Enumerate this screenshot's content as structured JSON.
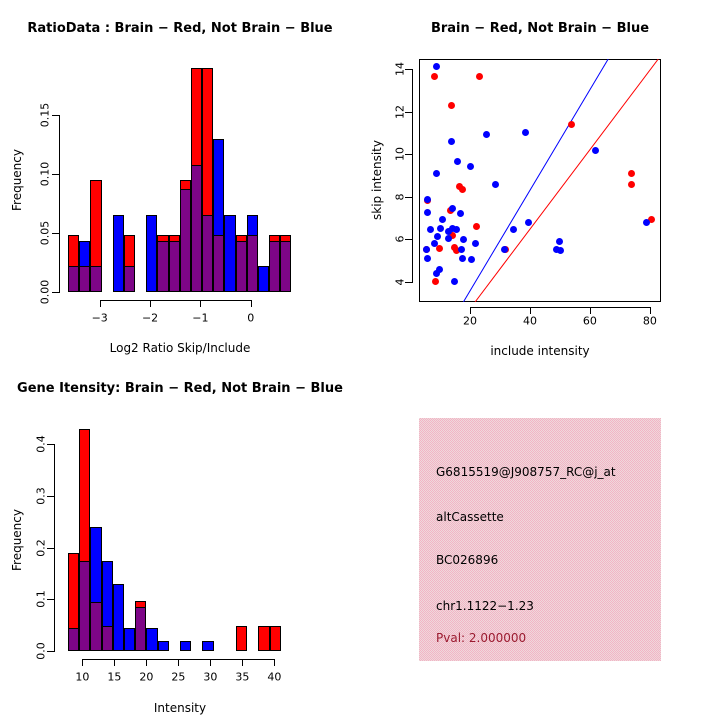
{
  "figure": {
    "background": "#FFFFFF",
    "description": "2x2 R graphics panel: two overlaid histograms, one scatter plot, one gene info box"
  },
  "colors": {
    "red": "#FF0000",
    "blue": "#0000FF",
    "overlap": "#7D0587",
    "axis": "#000000",
    "background": "#FFFFFF"
  },
  "chart_data": [
    {
      "id": "ratio-histogram",
      "type": "bar",
      "title": "RatioData : Brain − Red, Not Brain − Blue",
      "xlabel": "Log2 Ratio Skip/Include",
      "ylabel": "Frequency",
      "xlim": [
        -3.63,
        0.81
      ],
      "ylim": [
        0,
        0.19
      ],
      "bin_start": -3.63,
      "bin_width": 0.222,
      "x_ticks": [
        -3,
        -2,
        -1,
        0
      ],
      "x_tick_labels": [
        "−3",
        "−2",
        "−1",
        "0"
      ],
      "y_ticks": [
        0,
        0.05,
        0.1,
        0.15
      ],
      "y_tick_labels": [
        "0.00",
        "0.05",
        "0.10",
        "0.15"
      ],
      "grid": false,
      "legend": "none",
      "series": [
        {
          "name": "Brain",
          "color": "red",
          "values": [
            0.048,
            0.022,
            0.095,
            0,
            0,
            0.048,
            0,
            0,
            0.048,
            0.048,
            0.095,
            0.19,
            0.19,
            0.048,
            0,
            0.048,
            0.048,
            0,
            0.048,
            0.048
          ]
        },
        {
          "name": "Not Brain",
          "color": "blue",
          "values": [
            0.022,
            0.043,
            0.022,
            0,
            0.065,
            0.022,
            0,
            0.065,
            0.043,
            0.043,
            0.087,
            0.108,
            0.065,
            0.13,
            0.065,
            0.043,
            0.065,
            0.022,
            0.043,
            0.043
          ]
        }
      ]
    },
    {
      "id": "intensity-scatter",
      "type": "scatter",
      "title": "Brain − Red, Not Brain − Blue",
      "xlabel": "include intensity",
      "ylabel": "skip intensity",
      "xlim": [
        3,
        83.7
      ],
      "ylim": [
        3.04,
        14.47
      ],
      "x_ticks": [
        20,
        40,
        60,
        80
      ],
      "x_tick_labels": [
        "20",
        "40",
        "60",
        "80"
      ],
      "y_ticks": [
        4,
        6,
        8,
        10,
        12,
        14
      ],
      "y_tick_labels": [
        "4",
        "6",
        "8",
        "10",
        "12",
        "14"
      ],
      "grid": false,
      "legend": "none",
      "series": [
        {
          "name": "Brain",
          "color": "red",
          "points": [
            [
              8.3,
              13.65
            ],
            [
              23.3,
              13.65
            ],
            [
              14,
              12.3
            ],
            [
              54,
              11.4
            ],
            [
              16.4,
              8.45
            ],
            [
              17.5,
              8.35
            ],
            [
              74,
              9.1
            ],
            [
              74,
              8.55
            ],
            [
              5.8,
              7.8
            ],
            [
              13.5,
              7.35
            ],
            [
              22.3,
              6.6
            ],
            [
              14.2,
              6.15
            ],
            [
              9.8,
              5.55
            ],
            [
              15,
              5.6
            ],
            [
              15.4,
              5.45
            ],
            [
              5.4,
              5.5
            ],
            [
              8.5,
              4.0
            ],
            [
              80.5,
              6.9
            ],
            [
              31.8,
              5.5
            ]
          ]
        },
        {
          "name": "Not Brain",
          "color": "blue",
          "points": [
            [
              9,
              14.1
            ],
            [
              25.5,
              10.9
            ],
            [
              38.5,
              11.0
            ],
            [
              14,
              10.6
            ],
            [
              16,
              9.65
            ],
            [
              20.2,
              9.4
            ],
            [
              9,
              9.1
            ],
            [
              28.5,
              8.55
            ],
            [
              62,
              10.15
            ],
            [
              6,
              7.85
            ],
            [
              6,
              7.25
            ],
            [
              14.2,
              7.45
            ],
            [
              17,
              7.2
            ],
            [
              11,
              6.9
            ],
            [
              7,
              6.45
            ],
            [
              10.3,
              6.5
            ],
            [
              12.8,
              6.35
            ],
            [
              14.3,
              6.5
            ],
            [
              15.6,
              6.45
            ],
            [
              9.2,
              6.1
            ],
            [
              12.8,
              6.05
            ],
            [
              17.8,
              6.0
            ],
            [
              8.2,
              5.8
            ],
            [
              22,
              5.8
            ],
            [
              5.5,
              5.5
            ],
            [
              17.2,
              5.5
            ],
            [
              6,
              5.1
            ],
            [
              17.5,
              5.1
            ],
            [
              20.5,
              5.05
            ],
            [
              9.8,
              4.55
            ],
            [
              8.8,
              4.4
            ],
            [
              15,
              4.0
            ],
            [
              31.5,
              5.5
            ],
            [
              34.5,
              6.45
            ],
            [
              39.5,
              6.8
            ],
            [
              50,
              5.9
            ],
            [
              48.8,
              5.5
            ],
            [
              50.3,
              5.45
            ],
            [
              79,
              6.8
            ]
          ]
        }
      ],
      "lines": [
        {
          "name": "blue-diagonal",
          "color": "blue",
          "x1": 17.8,
          "y1": 3.04,
          "x2": 66.1,
          "y2": 14.47
        },
        {
          "name": "red-diagonal",
          "color": "red",
          "x1": 21.7,
          "y1": 3.04,
          "x2": 82.8,
          "y2": 14.47
        }
      ]
    },
    {
      "id": "gene-intensity-histogram",
      "type": "bar",
      "title": "Gene Itensity: Brain − Red, Not Brain − Blue",
      "xlabel": "Intensity",
      "ylabel": "Frequency",
      "xlim": [
        7.75,
        40.95
      ],
      "ylim": [
        0,
        0.43
      ],
      "bin_start": 7.75,
      "bin_width": 1.75,
      "x_ticks": [
        10,
        15,
        20,
        25,
        30,
        35,
        40
      ],
      "x_tick_labels": [
        "10",
        "15",
        "20",
        "25",
        "30",
        "35",
        "40"
      ],
      "y_ticks": [
        0,
        0.1,
        0.2,
        0.3,
        0.4
      ],
      "y_tick_labels": [
        "0.0",
        "0.1",
        "0.2",
        "0.3",
        "0.4"
      ],
      "grid": false,
      "legend": "none",
      "series": [
        {
          "name": "Brain",
          "color": "red",
          "values": [
            0.19,
            0.43,
            0.095,
            0.048,
            0,
            0,
            0.096,
            0,
            0,
            0,
            0,
            0,
            0,
            0,
            0,
            0.048,
            0,
            0.048,
            0.048
          ]
        },
        {
          "name": "Not Brain",
          "color": "blue",
          "values": [
            0.045,
            0.175,
            0.24,
            0.175,
            0.13,
            0.045,
            0.085,
            0.045,
            0.02,
            0,
            0.02,
            0,
            0.02,
            0,
            0,
            0,
            0,
            0,
            0
          ]
        }
      ]
    }
  ],
  "info_panel": {
    "background_dither": [
      "#F2B4C5",
      "#EFD8DB"
    ],
    "pval_color": "#9B1B30",
    "lines": [
      {
        "text": "G6815519@J908757_RC@j_at"
      },
      {
        "text": "altCassette"
      },
      {
        "text": "BC026896"
      },
      {
        "text": "chr1.1122−1.23"
      },
      {
        "text": "Pval: 2.000000"
      }
    ]
  }
}
